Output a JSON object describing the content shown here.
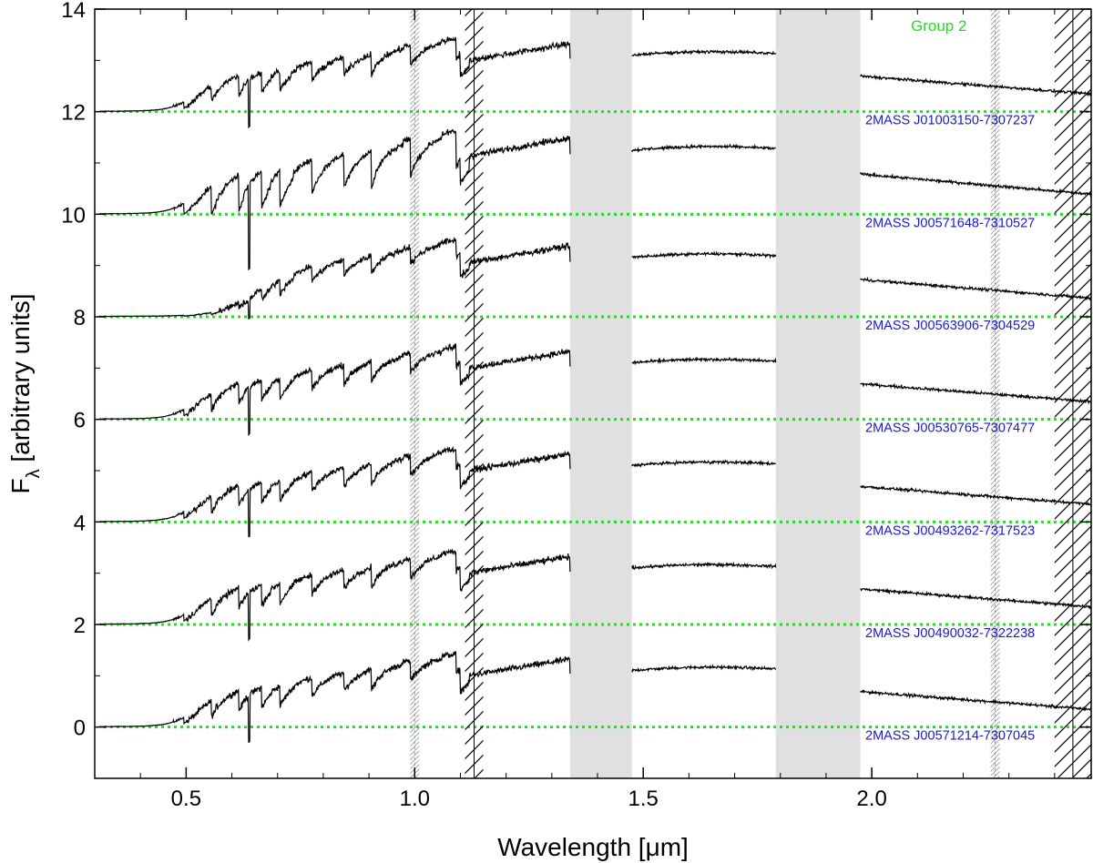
{
  "chart_data": {
    "type": "line",
    "title": "",
    "group_label": "Group 2",
    "xlabel": "Wavelength [μm]",
    "ylabel_main": "F",
    "ylabel_sub": "λ",
    "ylabel_rest": " [arbitrary units]",
    "xlim": [
      0.3,
      2.48
    ],
    "ylim": [
      -1,
      14
    ],
    "x_ticks": [
      0.5,
      1.0,
      1.5,
      2.0
    ],
    "x_tick_labels": [
      "0.5",
      "1.0",
      "1.5",
      "2.0"
    ],
    "y_ticks": [
      0,
      2,
      4,
      6,
      8,
      10,
      12,
      14
    ],
    "y_tick_labels": [
      "0",
      "2",
      "4",
      "6",
      "8",
      "10",
      "12",
      "14"
    ],
    "grey_bands": [
      [
        1.34,
        1.475
      ],
      [
        1.79,
        1.975
      ]
    ],
    "telluric_lines": [
      1.0,
      2.27
    ],
    "hatched_regions": [
      [
        1.11,
        1.15
      ],
      [
        2.4,
        2.48
      ]
    ],
    "series": [
      {
        "name": "2MASS J00571214-7307045",
        "offset": 0,
        "shape": "std"
      },
      {
        "name": "2MASS J00490032-7322238",
        "offset": 2,
        "shape": "std"
      },
      {
        "name": "2MASS J00493262-7317523",
        "offset": 4,
        "shape": "std"
      },
      {
        "name": "2MASS J00530765-7307477",
        "offset": 6,
        "shape": "std"
      },
      {
        "name": "2MASS J00563906-7304529",
        "offset": 8,
        "shape": "red"
      },
      {
        "name": "2MASS J00571648-7310527",
        "offset": 10,
        "shape": "strong"
      },
      {
        "name": "2MASS J01003150-7307237",
        "offset": 12,
        "shape": "std"
      }
    ],
    "colors": {
      "spectrum": "#000000",
      "baseline": "#22dd22",
      "star_label": "#1a1acc",
      "group_label": "#22dd22",
      "band": "#e0e0e0"
    }
  }
}
